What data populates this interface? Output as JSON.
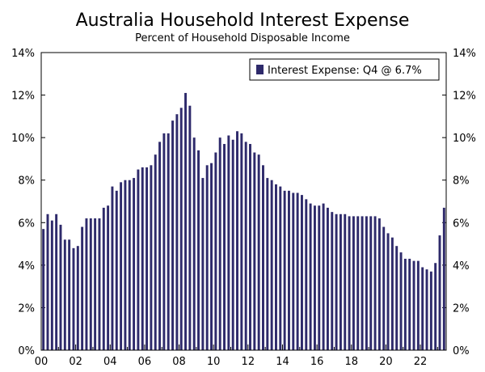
{
  "chart_data": {
    "type": "bar",
    "title": "Australia Household Interest Expense",
    "subtitle": "Percent of Household Disposable Income",
    "xlabel": "",
    "ylabel": "",
    "ylim": [
      0,
      14
    ],
    "y_ticks": [
      "0%",
      "2%",
      "4%",
      "6%",
      "8%",
      "10%",
      "12%",
      "14%"
    ],
    "x_ticks": [
      "00",
      "02",
      "04",
      "06",
      "08",
      "10",
      "12",
      "14",
      "16",
      "18",
      "20",
      "22"
    ],
    "x_start": "2000 Q1",
    "x_end": "2022 Q4",
    "bar_color": "#2e2a6b",
    "grid": false,
    "legend_position": "top-right",
    "series": [
      {
        "name": "Interest Expense: Q4 @ 6.7%",
        "values": [
          5.7,
          6.4,
          6.1,
          6.4,
          5.9,
          5.2,
          5.2,
          4.8,
          4.9,
          5.8,
          6.2,
          6.2,
          6.2,
          6.2,
          6.7,
          6.8,
          7.7,
          7.5,
          7.9,
          8.0,
          8.0,
          8.1,
          8.5,
          8.6,
          8.6,
          8.7,
          9.2,
          9.8,
          10.2,
          10.2,
          10.8,
          11.1,
          11.4,
          12.1,
          11.5,
          10.0,
          9.4,
          8.1,
          8.7,
          8.8,
          9.3,
          10.0,
          9.7,
          10.1,
          9.9,
          10.3,
          10.2,
          9.8,
          9.7,
          9.3,
          9.2,
          8.7,
          8.1,
          8.0,
          7.8,
          7.7,
          7.5,
          7.5,
          7.4,
          7.4,
          7.3,
          7.1,
          6.9,
          6.8,
          6.8,
          6.9,
          6.7,
          6.5,
          6.4,
          6.4,
          6.4,
          6.3,
          6.3,
          6.3,
          6.3,
          6.3,
          6.3,
          6.3,
          6.2,
          5.8,
          5.5,
          5.3,
          4.9,
          4.6,
          4.3,
          4.3,
          4.2,
          4.2,
          3.9,
          3.8,
          3.7,
          4.1,
          5.4,
          6.7
        ]
      }
    ]
  }
}
